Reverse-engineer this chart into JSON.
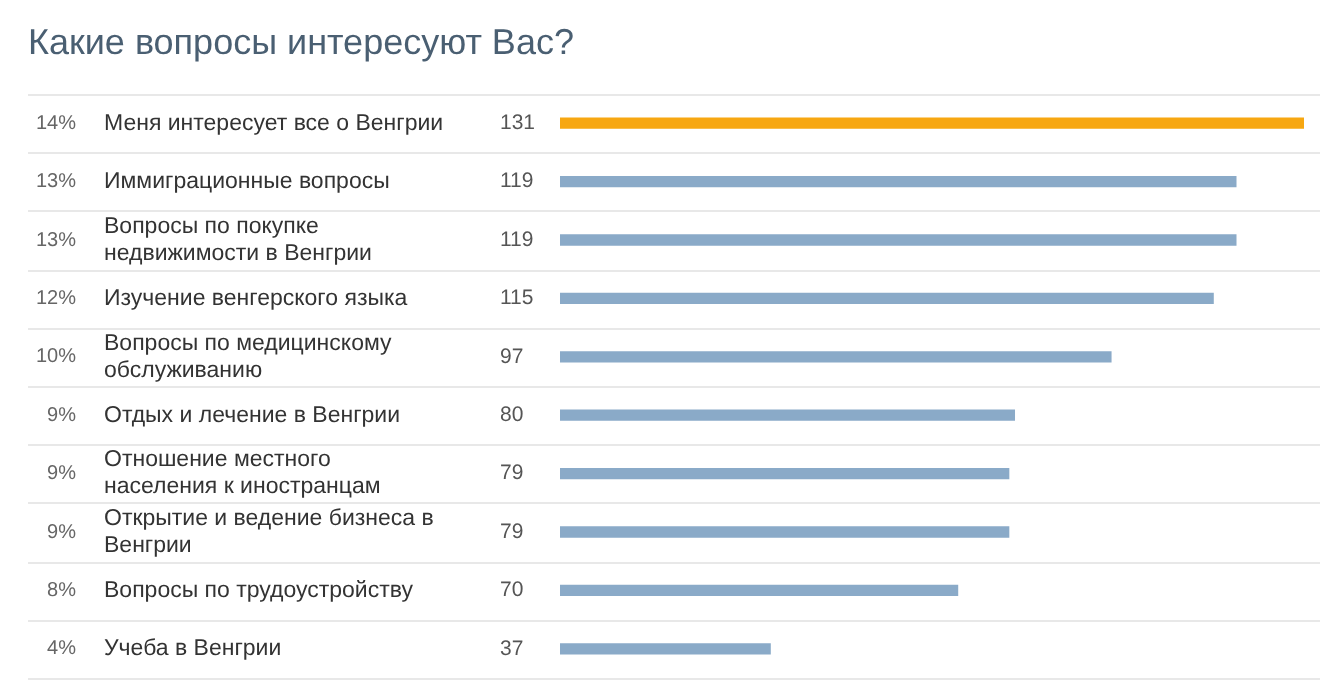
{
  "chart_data": {
    "type": "bar",
    "orientation": "horizontal",
    "title": "Какие вопросы интересуют Вас?",
    "categories": [
      "Меня интересует все о Венгрии",
      "Иммиграционные вопросы",
      "Вопросы по покупке недвижимости в Венгрии",
      "Изучение венгерского языка",
      "Вопросы по медицинскому обслуживанию",
      "Отдых и лечение в Венгрии",
      "Отношение местного населения к иностранцам",
      "Открытие и ведение бизнеса в Венгрии",
      "Вопросы по трудоустройству",
      "Учеба в Венгрии"
    ],
    "values": [
      131,
      119,
      119,
      115,
      97,
      80,
      79,
      79,
      70,
      37
    ],
    "colors": [
      "#f7a711",
      "#8aaac8",
      "#8aaac8",
      "#8aaac8",
      "#8aaac8",
      "#8aaac8",
      "#8aaac8",
      "#8aaac8",
      "#8aaac8",
      "#8aaac8"
    ],
    "xlim": [
      0,
      131
    ],
    "tick_labels": false,
    "data_labels": true,
    "annotations": [
      "14%",
      "13%",
      "13%",
      "12%",
      "10%",
      "9%",
      "9%",
      "9%",
      "8%",
      "4%"
    ]
  }
}
